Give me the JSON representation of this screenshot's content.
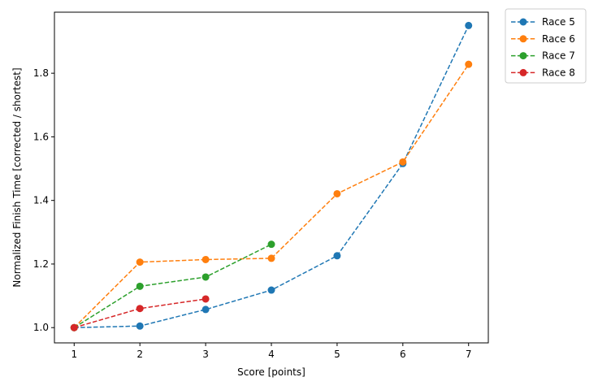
{
  "chart_data": {
    "type": "line",
    "xlabel": "Score [points]",
    "ylabel": "Normalized Finish Time [corrected / shortest]",
    "xlim": [
      0.7,
      7.3
    ],
    "ylim": [
      0.952,
      1.992
    ],
    "xticks": [
      1,
      2,
      3,
      4,
      5,
      6,
      7
    ],
    "yticks": [
      1.0,
      1.2,
      1.4,
      1.6,
      1.8
    ],
    "ytick_labels": [
      "1.0",
      "1.2",
      "1.4",
      "1.6",
      "1.8"
    ],
    "grid": false,
    "legend_position": "outside-top-right",
    "series": [
      {
        "name": "Race 5",
        "color": "#1f77b4",
        "x": [
          1,
          2,
          3,
          4,
          5,
          6,
          7
        ],
        "y": [
          1.0,
          1.005,
          1.057,
          1.118,
          1.226,
          1.516,
          1.95
        ]
      },
      {
        "name": "Race 6",
        "color": "#ff7f0e",
        "x": [
          1,
          2,
          3,
          4,
          5,
          6,
          7
        ],
        "y": [
          1.0,
          1.206,
          1.214,
          1.218,
          1.421,
          1.521,
          1.828
        ]
      },
      {
        "name": "Race 7",
        "color": "#2ca02c",
        "x": [
          1,
          2,
          3,
          4
        ],
        "y": [
          1.0,
          1.13,
          1.159,
          1.262
        ]
      },
      {
        "name": "Race 8",
        "color": "#d62728",
        "x": [
          1,
          2,
          3
        ],
        "y": [
          1.0,
          1.06,
          1.09
        ]
      }
    ]
  }
}
